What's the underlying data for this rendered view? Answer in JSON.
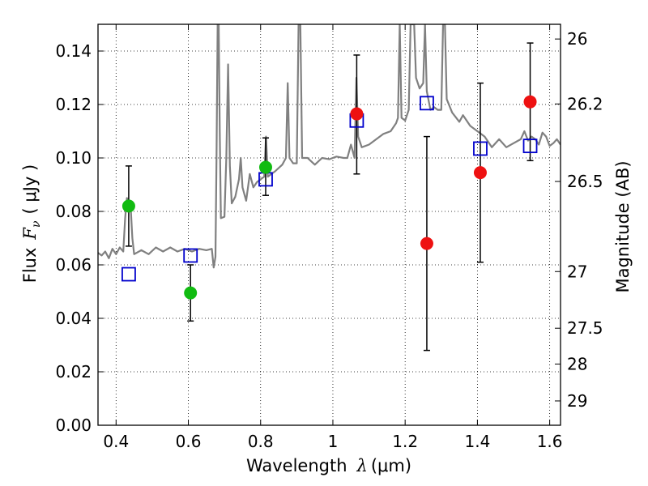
{
  "chart_data": {
    "type": "scatter",
    "xlabel_text": "Wavelength",
    "xlabel_symbol": "λ",
    "xlabel_unit": "(μm)",
    "ylabel_text": "Flux",
    "ylabel_symbol": "F",
    "ylabel_sub": "ν",
    "ylabel_unit": "( μJy )",
    "y2label": "Magnitude (AB)",
    "xlim": [
      0.35,
      1.63
    ],
    "ylim": [
      0.0,
      0.15
    ],
    "xticks": [
      0.4,
      0.6,
      0.8,
      1.0,
      1.2,
      1.4,
      1.6
    ],
    "xtick_labels": [
      "0.4",
      "0.6",
      "0.8",
      "1",
      "1.2",
      "1.4",
      "1.6"
    ],
    "yticks": [
      0.0,
      0.02,
      0.04,
      0.06,
      0.08,
      0.1,
      0.12,
      0.14
    ],
    "ytick_labels": [
      "0.00",
      "0.02",
      "0.04",
      "0.06",
      "0.08",
      "0.10",
      "0.12",
      "0.14"
    ],
    "y2ticks": [
      {
        "label": "26",
        "flux": 0.1445
      },
      {
        "label": "26.2",
        "flux": 0.1202
      },
      {
        "label": "26.5",
        "flux": 0.0912
      },
      {
        "label": "27",
        "flux": 0.0575
      },
      {
        "label": "27.5",
        "flux": 0.0363
      },
      {
        "label": "28",
        "flux": 0.0229
      },
      {
        "label": "29",
        "flux": 0.0091
      }
    ],
    "grid": true,
    "colors": {
      "spectrum": "#808080",
      "green": "#11bb11",
      "red": "#ee1111",
      "model": "#0000cc",
      "errorbar": "#000000"
    },
    "series": [
      {
        "marker": "circle",
        "color": "#11bb11",
        "points": [
          {
            "x": 0.435,
            "y": 0.082,
            "ylo": 0.067,
            "yhi": 0.097
          },
          {
            "x": 0.606,
            "y": 0.0495,
            "ylo": 0.039,
            "yhi": 0.06
          },
          {
            "x": 0.814,
            "y": 0.0965,
            "ylo": 0.086,
            "yhi": 0.1075
          }
        ]
      },
      {
        "marker": "circle",
        "color": "#ee1111",
        "points": [
          {
            "x": 1.066,
            "y": 0.1165,
            "ylo": 0.094,
            "yhi": 0.1385
          },
          {
            "x": 1.26,
            "y": 0.068,
            "ylo": 0.028,
            "yhi": 0.108
          },
          {
            "x": 1.408,
            "y": 0.0945,
            "ylo": 0.061,
            "yhi": 0.128
          },
          {
            "x": 1.546,
            "y": 0.121,
            "ylo": 0.099,
            "yhi": 0.143
          }
        ]
      },
      {
        "marker": "open-square",
        "color": "#0000cc",
        "points": [
          {
            "x": 0.435,
            "y": 0.0565
          },
          {
            "x": 0.606,
            "y": 0.0635
          },
          {
            "x": 0.814,
            "y": 0.092
          },
          {
            "x": 1.066,
            "y": 0.114
          },
          {
            "x": 1.26,
            "y": 0.1205
          },
          {
            "x": 1.408,
            "y": 0.1035
          },
          {
            "x": 1.546,
            "y": 0.1045
          }
        ]
      },
      {
        "marker": "line",
        "color": "#808080",
        "points": [
          {
            "x": 0.35,
            "y": 0.0645
          },
          {
            "x": 0.36,
            "y": 0.0635
          },
          {
            "x": 0.37,
            "y": 0.065
          },
          {
            "x": 0.38,
            "y": 0.0625
          },
          {
            "x": 0.39,
            "y": 0.066
          },
          {
            "x": 0.4,
            "y": 0.064
          },
          {
            "x": 0.41,
            "y": 0.0665
          },
          {
            "x": 0.42,
            "y": 0.065
          },
          {
            "x": 0.425,
            "y": 0.0775
          },
          {
            "x": 0.43,
            "y": 0.085
          },
          {
            "x": 0.44,
            "y": 0.083
          },
          {
            "x": 0.445,
            "y": 0.07
          },
          {
            "x": 0.45,
            "y": 0.064
          },
          {
            "x": 0.47,
            "y": 0.0655
          },
          {
            "x": 0.49,
            "y": 0.064
          },
          {
            "x": 0.51,
            "y": 0.0665
          },
          {
            "x": 0.53,
            "y": 0.065
          },
          {
            "x": 0.55,
            "y": 0.0665
          },
          {
            "x": 0.57,
            "y": 0.065
          },
          {
            "x": 0.59,
            "y": 0.066
          },
          {
            "x": 0.61,
            "y": 0.065
          },
          {
            "x": 0.63,
            "y": 0.066
          },
          {
            "x": 0.65,
            "y": 0.0655
          },
          {
            "x": 0.665,
            "y": 0.066
          },
          {
            "x": 0.67,
            "y": 0.059
          },
          {
            "x": 0.675,
            "y": 0.063
          },
          {
            "x": 0.678,
            "y": 0.1
          },
          {
            "x": 0.681,
            "y": 0.15
          },
          {
            "x": 0.684,
            "y": 0.15
          },
          {
            "x": 0.687,
            "y": 0.11
          },
          {
            "x": 0.69,
            "y": 0.0775
          },
          {
            "x": 0.7,
            "y": 0.078
          },
          {
            "x": 0.705,
            "y": 0.1
          },
          {
            "x": 0.71,
            "y": 0.135
          },
          {
            "x": 0.715,
            "y": 0.097
          },
          {
            "x": 0.72,
            "y": 0.083
          },
          {
            "x": 0.73,
            "y": 0.0855
          },
          {
            "x": 0.74,
            "y": 0.092
          },
          {
            "x": 0.745,
            "y": 0.1
          },
          {
            "x": 0.75,
            "y": 0.089
          },
          {
            "x": 0.76,
            "y": 0.084
          },
          {
            "x": 0.77,
            "y": 0.094
          },
          {
            "x": 0.78,
            "y": 0.089
          },
          {
            "x": 0.79,
            "y": 0.091
          },
          {
            "x": 0.8,
            "y": 0.092
          },
          {
            "x": 0.81,
            "y": 0.093
          },
          {
            "x": 0.815,
            "y": 0.108
          },
          {
            "x": 0.82,
            "y": 0.093
          },
          {
            "x": 0.83,
            "y": 0.094
          },
          {
            "x": 0.84,
            "y": 0.095
          },
          {
            "x": 0.86,
            "y": 0.0975
          },
          {
            "x": 0.87,
            "y": 0.1
          },
          {
            "x": 0.875,
            "y": 0.128
          },
          {
            "x": 0.88,
            "y": 0.1
          },
          {
            "x": 0.89,
            "y": 0.098
          },
          {
            "x": 0.9,
            "y": 0.098
          },
          {
            "x": 0.905,
            "y": 0.15
          },
          {
            "x": 0.91,
            "y": 0.15
          },
          {
            "x": 0.915,
            "y": 0.1
          },
          {
            "x": 0.93,
            "y": 0.1
          },
          {
            "x": 0.95,
            "y": 0.0975
          },
          {
            "x": 0.97,
            "y": 0.1
          },
          {
            "x": 0.99,
            "y": 0.0995
          },
          {
            "x": 1.01,
            "y": 0.1005
          },
          {
            "x": 1.03,
            "y": 0.1
          },
          {
            "x": 1.04,
            "y": 0.1
          },
          {
            "x": 1.05,
            "y": 0.105
          },
          {
            "x": 1.06,
            "y": 0.1
          },
          {
            "x": 1.065,
            "y": 0.13
          },
          {
            "x": 1.07,
            "y": 0.108
          },
          {
            "x": 1.08,
            "y": 0.104
          },
          {
            "x": 1.1,
            "y": 0.105
          },
          {
            "x": 1.12,
            "y": 0.107
          },
          {
            "x": 1.14,
            "y": 0.109
          },
          {
            "x": 1.16,
            "y": 0.11
          },
          {
            "x": 1.175,
            "y": 0.113
          },
          {
            "x": 1.18,
            "y": 0.115
          },
          {
            "x": 1.185,
            "y": 0.15
          },
          {
            "x": 1.19,
            "y": 0.115
          },
          {
            "x": 1.2,
            "y": 0.114
          },
          {
            "x": 1.21,
            "y": 0.118
          },
          {
            "x": 1.215,
            "y": 0.15
          },
          {
            "x": 1.22,
            "y": 0.15
          },
          {
            "x": 1.225,
            "y": 0.15
          },
          {
            "x": 1.23,
            "y": 0.13
          },
          {
            "x": 1.24,
            "y": 0.126
          },
          {
            "x": 1.25,
            "y": 0.128
          },
          {
            "x": 1.255,
            "y": 0.15
          },
          {
            "x": 1.26,
            "y": 0.125
          },
          {
            "x": 1.27,
            "y": 0.118
          },
          {
            "x": 1.28,
            "y": 0.119
          },
          {
            "x": 1.29,
            "y": 0.118
          },
          {
            "x": 1.3,
            "y": 0.118
          },
          {
            "x": 1.305,
            "y": 0.15
          },
          {
            "x": 1.31,
            "y": 0.15
          },
          {
            "x": 1.315,
            "y": 0.122
          },
          {
            "x": 1.33,
            "y": 0.117
          },
          {
            "x": 1.35,
            "y": 0.1135
          },
          {
            "x": 1.36,
            "y": 0.116
          },
          {
            "x": 1.38,
            "y": 0.112
          },
          {
            "x": 1.4,
            "y": 0.11
          },
          {
            "x": 1.42,
            "y": 0.108
          },
          {
            "x": 1.44,
            "y": 0.104
          },
          {
            "x": 1.46,
            "y": 0.107
          },
          {
            "x": 1.48,
            "y": 0.104
          },
          {
            "x": 1.5,
            "y": 0.1055
          },
          {
            "x": 1.52,
            "y": 0.107
          },
          {
            "x": 1.53,
            "y": 0.11
          },
          {
            "x": 1.54,
            "y": 0.1065
          },
          {
            "x": 1.55,
            "y": 0.108
          },
          {
            "x": 1.56,
            "y": 0.107
          },
          {
            "x": 1.57,
            "y": 0.105
          },
          {
            "x": 1.58,
            "y": 0.1095
          },
          {
            "x": 1.59,
            "y": 0.108
          },
          {
            "x": 1.6,
            "y": 0.1045
          },
          {
            "x": 1.61,
            "y": 0.1055
          },
          {
            "x": 1.62,
            "y": 0.107
          },
          {
            "x": 1.63,
            "y": 0.105
          }
        ]
      }
    ]
  }
}
